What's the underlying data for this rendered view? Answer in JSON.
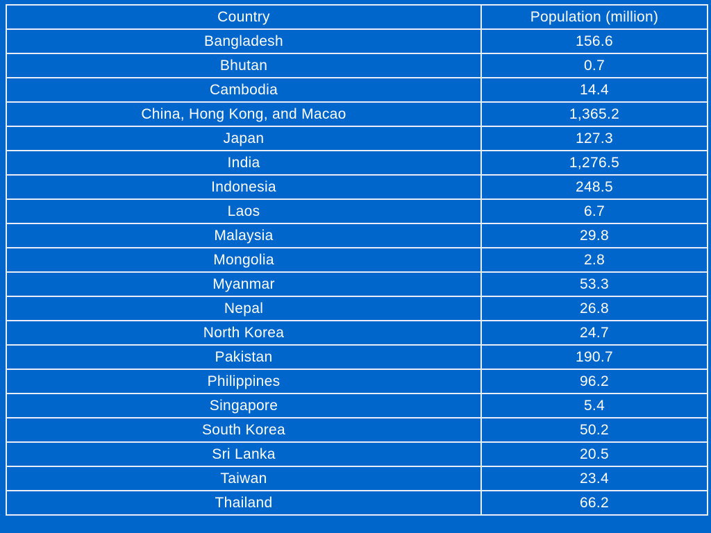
{
  "table": {
    "headers": {
      "country": "Country",
      "population": "Population (million)"
    },
    "rows": [
      {
        "country": "Bangladesh",
        "population": "156.6"
      },
      {
        "country": "Bhutan",
        "population": "0.7"
      },
      {
        "country": "Cambodia",
        "population": "14.4"
      },
      {
        "country": "China, Hong Kong, and Macao",
        "population": "1,365.2"
      },
      {
        "country": "Japan",
        "population": "127.3"
      },
      {
        "country": "India",
        "population": "1,276.5"
      },
      {
        "country": "Indonesia",
        "population": "248.5"
      },
      {
        "country": "Laos",
        "population": "6.7"
      },
      {
        "country": "Malaysia",
        "population": "29.8"
      },
      {
        "country": "Mongolia",
        "population": "2.8"
      },
      {
        "country": "Myanmar",
        "population": "53.3"
      },
      {
        "country": "Nepal",
        "population": "26.8"
      },
      {
        "country": "North Korea",
        "population": "24.7"
      },
      {
        "country": "Pakistan",
        "population": "190.7"
      },
      {
        "country": "Philippines",
        "population": "96.2"
      },
      {
        "country": "Singapore",
        "population": "5.4"
      },
      {
        "country": "South Korea",
        "population": "50.2"
      },
      {
        "country": "Sri Lanka",
        "population": "20.5"
      },
      {
        "country": "Taiwan",
        "population": "23.4"
      },
      {
        "country": "Thailand",
        "population": "66.2"
      }
    ]
  },
  "colors": {
    "background": "#0066cc",
    "text": "#ffffff",
    "border": "#e8eef7"
  }
}
